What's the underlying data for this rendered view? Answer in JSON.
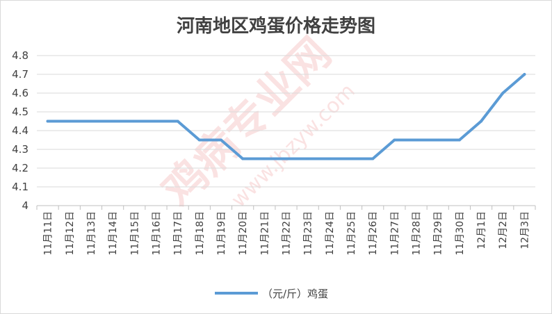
{
  "chart_data": {
    "type": "line",
    "title": "河南地区鸡蛋价格走势图",
    "xlabel": "",
    "ylabel": "",
    "categories": [
      "11月11日",
      "11月12日",
      "11月13日",
      "11月14日",
      "11月15日",
      "11月16日",
      "11月17日",
      "11月18日",
      "11月19日",
      "11月20日",
      "11月21日",
      "11月22日",
      "11月23日",
      "11月24日",
      "11月25日",
      "11月26日",
      "11月27日",
      "11月28日",
      "11月29日",
      "11月30日",
      "12月1日",
      "12月2日",
      "12月3日"
    ],
    "series": [
      {
        "name": "（元/斤）鸡蛋",
        "color": "#5b9bd5",
        "values": [
          4.45,
          4.45,
          4.45,
          4.45,
          4.45,
          4.45,
          4.45,
          4.35,
          4.35,
          4.25,
          4.25,
          4.25,
          4.25,
          4.25,
          4.25,
          4.25,
          4.35,
          4.35,
          4.35,
          4.35,
          4.45,
          4.6,
          4.7
        ]
      }
    ],
    "ylim": [
      4,
      4.8
    ],
    "yticks": [
      "4",
      "4.1",
      "4.2",
      "4.3",
      "4.4",
      "4.5",
      "4.6",
      "4.7",
      "4.8"
    ],
    "grid": true,
    "legend": "bottom"
  },
  "watermark": {
    "text": "鸡病专业网",
    "url": "www.jbzyw.com"
  },
  "colors": {
    "line": "#5b9bd5",
    "grid": "#d9d9d9",
    "text": "#404040",
    "watermark": "#e33b3b"
  }
}
